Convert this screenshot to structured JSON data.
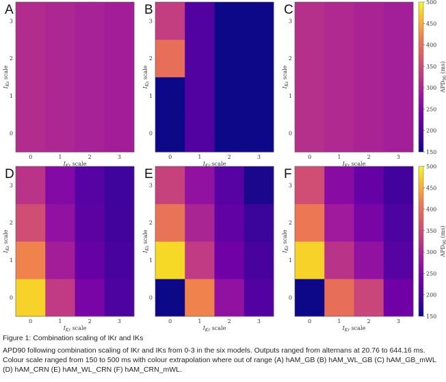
{
  "caption": {
    "title": "Figure 1:  Combination scaling of IKr and IKs",
    "body": "APD90 following combination scaling of IKr and IKs from 0-3 in the six models. Outputs ranged from alternans at 20.76 to 644.16 ms. Colour scale ranged from 150 to 500 ms with colour extrapolation where out of range (A) hAM_GB (B) hAM_WL_GB (C) hAM_GB_mWL (D) hAM_CRN (E) hAM_WL_CRN (F) hAM_CRN_mWL."
  },
  "colorbar": {
    "label": "APD90 (ms)",
    "ticks": [
      "500",
      "450",
      "400",
      "350",
      "300",
      "250",
      "200",
      "150"
    ]
  },
  "chart_data": [
    {
      "type": "heatmap",
      "panel": "A",
      "xlabel": "IKr scale",
      "ylabel": "IKs scale",
      "x_ticks": [
        "0",
        "1",
        "2",
        "3"
      ],
      "y_ticks": [
        "0",
        "1",
        "2",
        "3"
      ],
      "rows_bottom_to_top": [
        [
          310,
          303,
          296,
          290
        ],
        [
          310,
          303,
          296,
          290
        ],
        [
          310,
          303,
          296,
          290
        ],
        [
          310,
          303,
          296,
          290
        ]
      ],
      "colorscale": "plasma",
      "vmin": 150,
      "vmax": 500
    },
    {
      "type": "heatmap",
      "panel": "B",
      "xlabel": "IKr scale",
      "ylabel": "IKs scale",
      "x_ticks": [
        "0",
        "1",
        "2",
        "3"
      ],
      "y_ticks": [
        "0",
        "1",
        "2",
        "3"
      ],
      "rows_bottom_to_top": [
        [
          150,
          205,
          150,
          150
        ],
        [
          150,
          205,
          150,
          150
        ],
        [
          400,
          205,
          150,
          150
        ],
        [
          335,
          205,
          150,
          150
        ]
      ],
      "colorscale": "plasma",
      "vmin": 150,
      "vmax": 500
    },
    {
      "type": "heatmap",
      "panel": "C",
      "xlabel": "IKr scale",
      "ylabel": "IKs scale",
      "x_ticks": [
        "0",
        "1",
        "2",
        "3"
      ],
      "y_ticks": [
        "0",
        "1",
        "2",
        "3"
      ],
      "rows_bottom_to_top": [
        [
          315,
          306,
          298,
          291
        ],
        [
          315,
          306,
          298,
          291
        ],
        [
          315,
          306,
          298,
          291
        ],
        [
          315,
          306,
          298,
          291
        ]
      ],
      "colorscale": "plasma",
      "vmin": 150,
      "vmax": 500
    },
    {
      "type": "heatmap",
      "panel": "D",
      "xlabel": "IKr scale",
      "ylabel": "IKs scale",
      "x_ticks": [
        "0",
        "1",
        "2",
        "3"
      ],
      "y_ticks": [
        "0",
        "1",
        "2",
        "3"
      ],
      "rows_bottom_to_top": [
        [
          475,
          330,
          245,
          200
        ],
        [
          420,
          290,
          225,
          195
        ],
        [
          355,
          270,
          215,
          190
        ],
        [
          320,
          255,
          210,
          188
        ]
      ],
      "colorscale": "plasma",
      "vmin": 150,
      "vmax": 500
    },
    {
      "type": "heatmap",
      "panel": "E",
      "xlabel": "IKr scale",
      "ylabel": "IKs scale",
      "x_ticks": [
        "0",
        "1",
        "2",
        "3"
      ],
      "y_ticks": [
        "0",
        "1",
        "2",
        "3"
      ],
      "rows_bottom_to_top": [
        [
          150,
          420,
          270,
          205
        ],
        [
          480,
          330,
          235,
          195
        ],
        [
          405,
          300,
          220,
          185
        ],
        [
          340,
          270,
          210,
          160
        ]
      ],
      "colorscale": "plasma",
      "vmin": 150,
      "vmax": 500
    },
    {
      "type": "heatmap",
      "panel": "F",
      "xlabel": "IKr scale",
      "ylabel": "IKs scale",
      "x_ticks": [
        "0",
        "1",
        "2",
        "3"
      ],
      "y_ticks": [
        "0",
        "1",
        "2",
        "3"
      ],
      "rows_bottom_to_top": [
        [
          150,
          400,
          345,
          235
        ],
        [
          475,
          320,
          270,
          210
        ],
        [
          410,
          285,
          245,
          200
        ],
        [
          355,
          260,
          225,
          190
        ]
      ],
      "colorscale": "plasma",
      "vmin": 150,
      "vmax": 500
    }
  ]
}
